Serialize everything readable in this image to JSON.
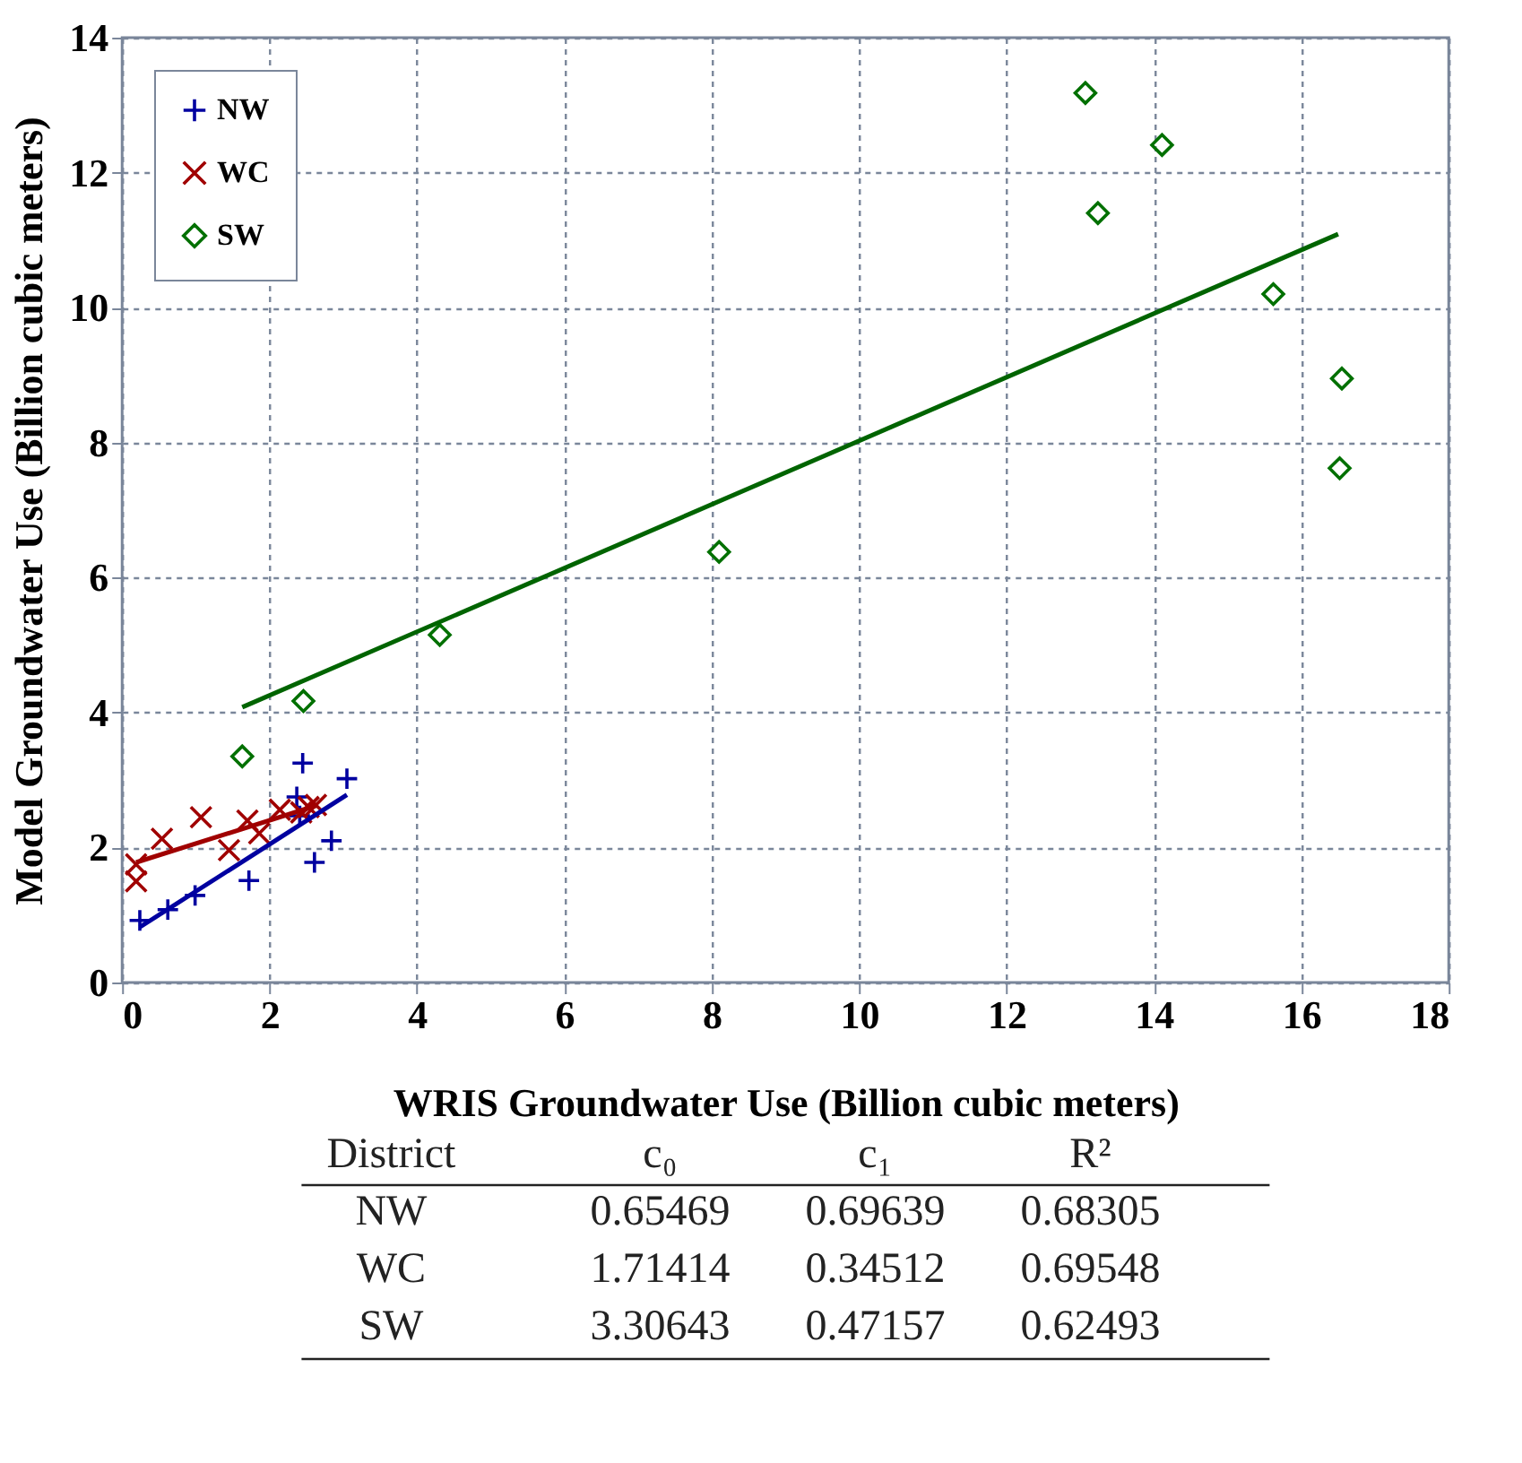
{
  "chart_data": {
    "type": "scatter",
    "xlabel": "WRIS Groundwater Use (Billion cubic meters)",
    "ylabel": "Model Groundwater Use (Billion cubic meters)",
    "xlim": [
      0,
      18
    ],
    "xticks": [
      0,
      2,
      4,
      6,
      8,
      10,
      12,
      14,
      16,
      18
    ],
    "ylim": [
      0,
      14
    ],
    "yticks": [
      0,
      2,
      4,
      6,
      8,
      10,
      12,
      14
    ],
    "grid": true,
    "legend": "top left",
    "series": [
      {
        "name": "NW",
        "color": "#0000a0",
        "marker": "cross",
        "x": [
          0.24,
          0.62,
          0.99,
          1.72,
          2.45,
          2.37,
          2.41,
          3.05,
          2.84,
          2.61
        ],
        "values": [
          0.92,
          1.08,
          1.29,
          1.51,
          3.25,
          2.75,
          2.47,
          3.02,
          2.1,
          1.78
        ]
      },
      {
        "name": "WC",
        "color": "#a00000",
        "marker": "x",
        "x": [
          0.19,
          0.19,
          0.54,
          1.07,
          1.7,
          1.45,
          1.86,
          2.14,
          2.53,
          2.63,
          2.43
        ],
        "values": [
          1.5,
          1.75,
          2.13,
          2.45,
          2.4,
          1.96,
          2.21,
          2.56,
          2.6,
          2.63,
          2.52
        ]
      },
      {
        "name": "SW",
        "color": "#007000",
        "marker": "diamond",
        "x": [
          1.63,
          2.46,
          4.31,
          8.1,
          13.07,
          13.24,
          14.11,
          15.62,
          16.55,
          16.52
        ],
        "values": [
          3.35,
          4.17,
          5.15,
          6.38,
          13.18,
          11.4,
          12.41,
          10.2,
          8.95,
          7.62
        ]
      },
      {
        "type": "line",
        "color": "#0000a0",
        "x": [
          0.24,
          3.05
        ],
        "values": [
          0.82,
          2.78
        ]
      },
      {
        "type": "line",
        "color": "#a00000",
        "x": [
          0.19,
          2.63
        ],
        "values": [
          1.78,
          2.62
        ]
      },
      {
        "type": "line",
        "color": "#006400",
        "x": [
          1.63,
          16.5
        ],
        "values": [
          4.08,
          11.09
        ]
      }
    ],
    "annotations": [
      "District",
      "c₀",
      "c₁",
      "R²",
      "NW",
      "0.65469",
      "0.69639",
      "0.68305",
      "WC",
      "1.71414",
      "0.34512",
      "0.69548",
      "SW",
      "3.30643",
      "0.47157",
      "0.62493"
    ]
  }
}
